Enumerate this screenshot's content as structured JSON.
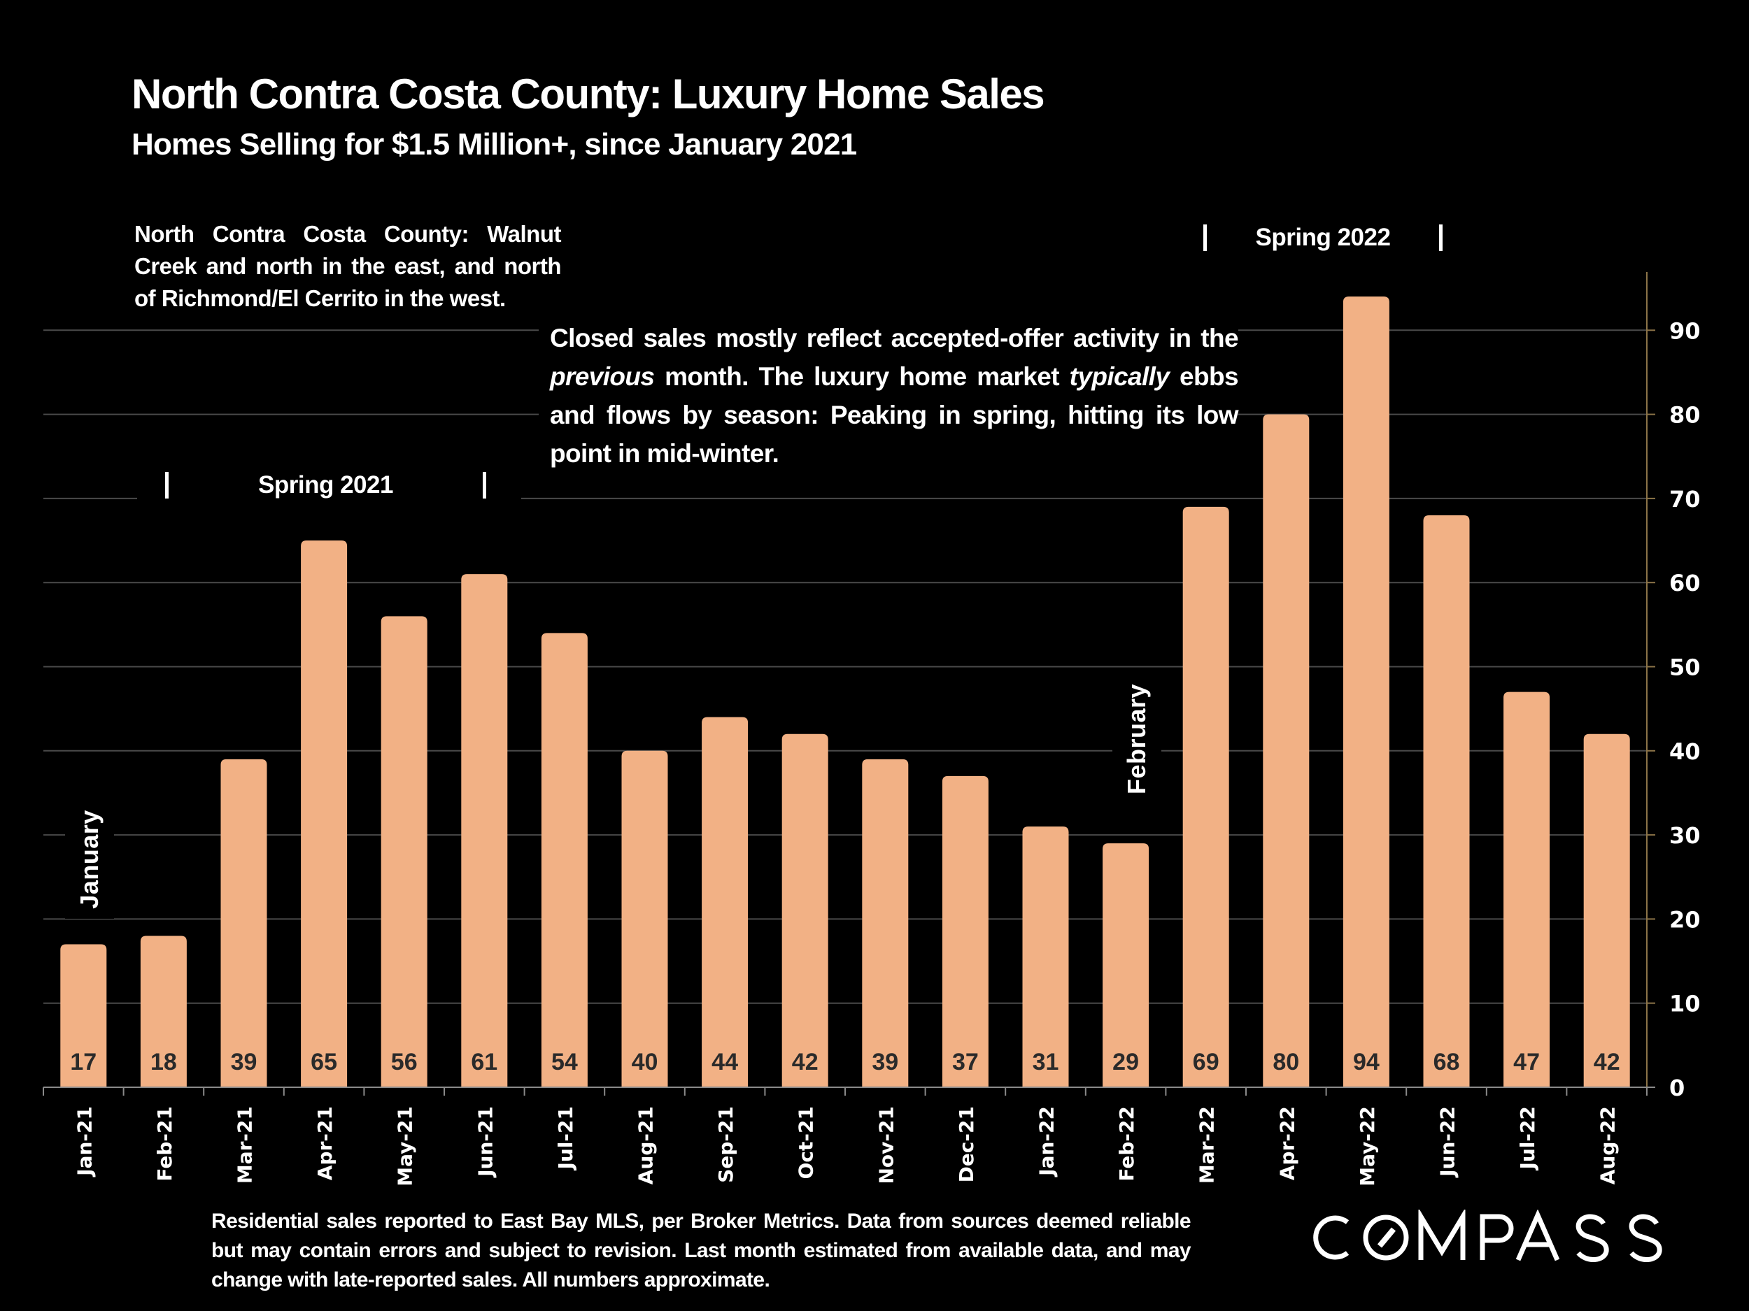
{
  "header": {
    "title": "North Contra Costa County: Luxury Home Sales",
    "subtitle": "Homes Selling for $1.5 Million+, since January 2021"
  },
  "annotations": {
    "region_note": "North Contra Costa County: Walnut Creek and north in the east, and north of Richmond/El Cerrito in the west.",
    "market_note": {
      "part1": "Closed sales mostly reflect accepted-offer activity in the ",
      "italic1": "previous",
      "part2": " month. The luxury home market ",
      "italic2": "typically",
      "part3": " ebbs and flows by season: Peaking in spring, hitting its low point in mid-winter."
    },
    "spring_2021": "Spring 2021",
    "spring_2022": "Spring 2022",
    "season_marker": "|",
    "january": "January",
    "february": "February"
  },
  "footer": {
    "note": "Residential sales reported to East Bay MLS, per Broker Metrics. Data from sources deemed reliable but may contain errors and subject to revision.  Last month estimated from available data, and may change with late-reported sales. All numbers approximate.",
    "logo": "COMPASS"
  },
  "colors": {
    "background": "#000000",
    "bar": "#F2B185",
    "bar_label": "#2A2A2A",
    "gridline": "#4A4A4A",
    "axis": "#8C7448",
    "text": "#FFFFFF"
  },
  "chart_data": {
    "type": "bar",
    "title": "North Contra Costa County: Luxury Home Sales",
    "subtitle": "Homes Selling for $1.5 Million+, since January 2021",
    "xlabel": "",
    "ylabel": "",
    "categories": [
      "Jan-21",
      "Feb-21",
      "Mar-21",
      "Apr-21",
      "May-21",
      "Jun-21",
      "Jul-21",
      "Aug-21",
      "Sep-21",
      "Oct-21",
      "Nov-21",
      "Dec-21",
      "Jan-22",
      "Feb-22",
      "Mar-22",
      "Apr-22",
      "May-22",
      "Jun-22",
      "Jul-22",
      "Aug-22"
    ],
    "values": [
      17,
      18,
      39,
      65,
      56,
      61,
      54,
      40,
      44,
      42,
      39,
      37,
      31,
      29,
      69,
      80,
      94,
      68,
      47,
      42
    ],
    "ylim": [
      0,
      97
    ],
    "yticks": [
      0,
      10,
      20,
      30,
      40,
      50,
      60,
      70,
      80,
      90
    ],
    "y_axis_side": "right",
    "grid": true,
    "data_labels": true,
    "legend": "none"
  }
}
